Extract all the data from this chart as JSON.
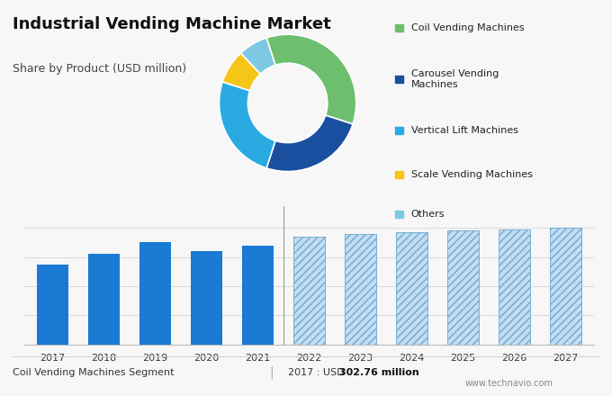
{
  "title": "Industrial Vending Machine Market",
  "subtitle": "Share by Product (USD million)",
  "background_top": "#cdd9e4",
  "background_bottom": "#f7f7f7",
  "pie_colors": [
    "#6dbf6d",
    "#1a4fa0",
    "#29abe2",
    "#f5c518",
    "#7ec8e3"
  ],
  "pie_labels": [
    "Coil Vending Machines",
    "Carousel Vending\nMachines",
    "Vertical Lift Machines",
    "Scale Vending Machines",
    "Others"
  ],
  "pie_sizes": [
    35,
    25,
    25,
    8,
    7
  ],
  "pie_startangle": 108,
  "bar_years_solid": [
    2017,
    2018,
    2019,
    2020,
    2021
  ],
  "bar_values_solid": [
    0.55,
    0.62,
    0.7,
    0.64,
    0.68
  ],
  "bar_years_hatched": [
    2022,
    2023,
    2024,
    2025,
    2026,
    2027
  ],
  "bar_values_hatched": [
    0.74,
    0.76,
    0.77,
    0.78,
    0.79,
    0.8
  ],
  "bar_color_solid": "#1a7ad4",
  "bar_color_hatched_face": "#c5ddf0",
  "bar_color_hatched_edge": "#6aaad4",
  "bar_ylim": [
    0,
    0.95
  ],
  "footer_left": "Coil Vending Machines Segment",
  "footer_sep": "|",
  "footer_pre": "2017 : USD ",
  "footer_bold": "302.76 million",
  "footer_url": "www.technavio.com",
  "title_fontsize": 13,
  "subtitle_fontsize": 9,
  "legend_fontsize": 8,
  "bar_tick_fontsize": 8
}
